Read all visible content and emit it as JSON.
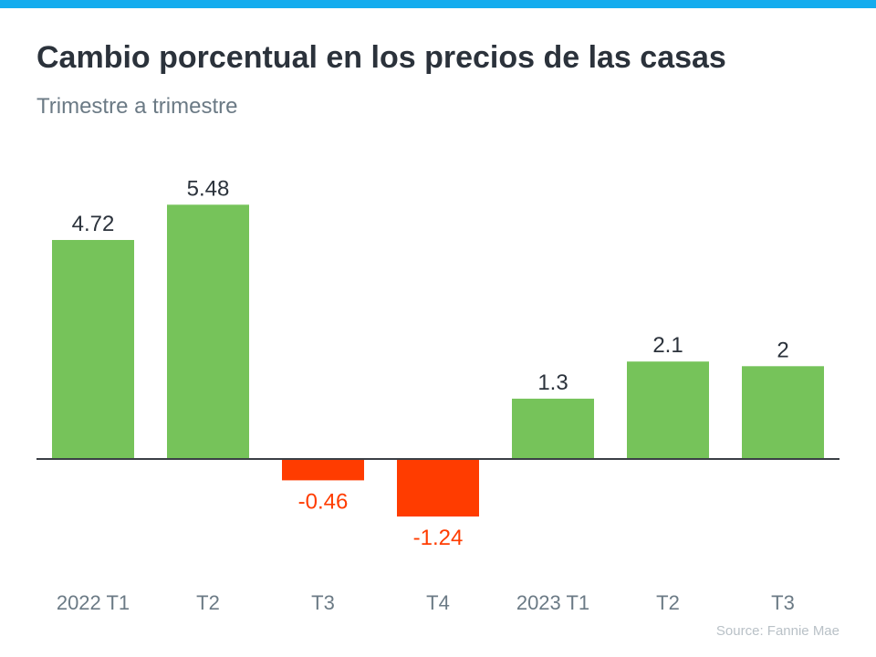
{
  "header": {
    "title": "Cambio porcentual en los precios de las casas",
    "subtitle": "Trimestre a trimestre"
  },
  "source": "Source: Fannie Mae",
  "colors": {
    "topbar": "#14acee",
    "positive": "#76c35a",
    "negative": "#ff3c00",
    "axis": "#3a3f45"
  },
  "chart_data": {
    "type": "bar",
    "title": "Cambio porcentual en los precios de las casas",
    "subtitle": "Trimestre a trimestre",
    "xlabel": "",
    "ylabel": "",
    "categories": [
      "2022 T1",
      "T2",
      "T3",
      "T4",
      "2023 T1",
      "T2",
      "T3"
    ],
    "values": [
      4.72,
      5.48,
      -0.46,
      -1.24,
      1.3,
      2.1,
      2
    ],
    "labels": [
      "4.72",
      "5.48",
      "-0.46",
      "-1.24",
      "1.3",
      "2.1",
      "2"
    ],
    "ylim": [
      -2.5,
      6
    ],
    "grid": false
  }
}
